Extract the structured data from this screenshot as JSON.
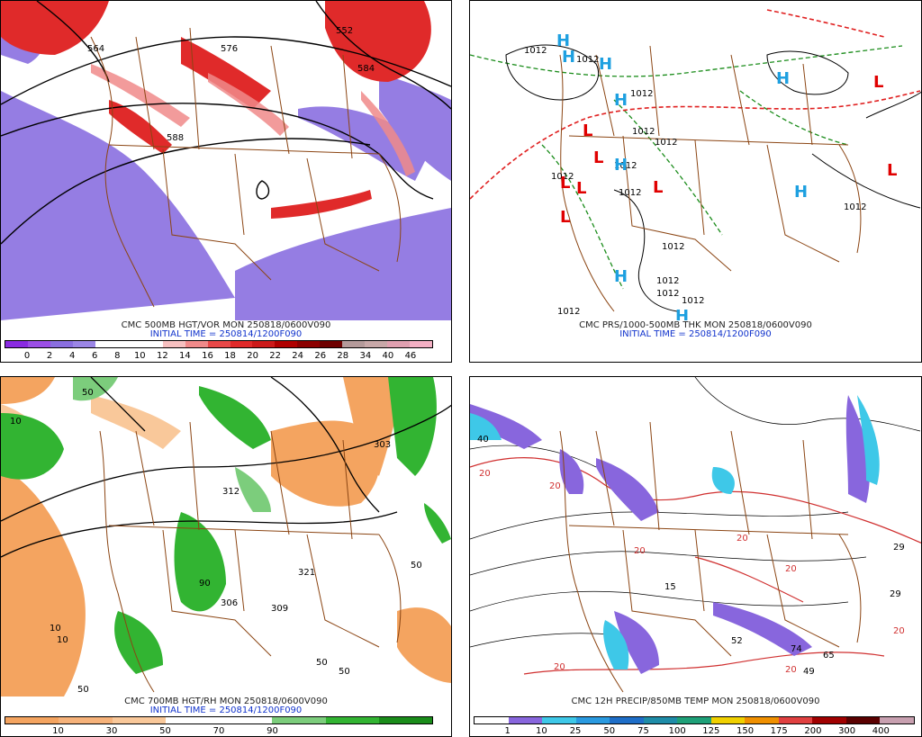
{
  "panels": [
    {
      "title": "CMC 500MB HGT/VOR MON 250818/0600V090",
      "initial": "INITIAL TIME = 250814/1200F090",
      "colorbar": {
        "colors": [
          "#8a2be2",
          "#9b4ee6",
          "#8a6fe0",
          "#9b86e6",
          "#ffffff",
          "#ffffff",
          "#ffffff",
          "#f6c0c0",
          "#f08a8a",
          "#e84848",
          "#e02a2a",
          "#cc1a1a",
          "#b00000",
          "#8c0000",
          "#6e0000",
          "#b49a9a",
          "#c8a8a8",
          "#e0a0b0",
          "#f4b0c4"
        ],
        "ticks": [
          "0",
          "2",
          "4",
          "6",
          "8",
          "10",
          "12",
          "14",
          "16",
          "18",
          "20",
          "22",
          "24",
          "26",
          "28",
          "34",
          "40",
          "46"
        ]
      },
      "contour_labels": [
        "564",
        "576",
        "552",
        "584",
        "588"
      ]
    },
    {
      "title": "CMC PRS/1000-500MB THK MON 250818/0600V090",
      "initial": "INITIAL TIME = 250814/1200F090",
      "pressure_labels": [
        "1012",
        "1012",
        "1012",
        "1012",
        "1012",
        "1012",
        "1012",
        "1012",
        "1012",
        "1012",
        "1012",
        "1012",
        "1012",
        "1012"
      ],
      "highs": [
        "H",
        "H",
        "H",
        "H",
        "H",
        "H",
        "H",
        "H",
        "H"
      ],
      "lows": [
        "L",
        "L",
        "L",
        "L",
        "L",
        "L",
        "L",
        "L"
      ]
    },
    {
      "title": "CMC 700MB HGT/RH MON 250818/0600V090",
      "initial": "INITIAL TIME = 250814/1200F090",
      "colorbar": {
        "colors": [
          "#f4a460",
          "#f6b27a",
          "#f9c89a",
          "#ffffff",
          "#ffffff",
          "#7ccd7c",
          "#32b432",
          "#1a8c1a"
        ],
        "ticks": [
          "10",
          "30",
          "50",
          "70",
          "90"
        ]
      },
      "contour_labels": [
        "50",
        "10",
        "50",
        "10",
        "50",
        "90",
        "50",
        "10",
        "50",
        "303",
        "312",
        "321",
        "306",
        "309"
      ]
    },
    {
      "title": "CMC 12H PRECIP/850MB TEMP MON 250818/0600V090",
      "colorbar": {
        "colors": [
          "#ffffff",
          "#8866dd",
          "#3ec8e8",
          "#2a9ae0",
          "#1e6ec8",
          "#1e8ca8",
          "#1ea078",
          "#f0d000",
          "#f09000",
          "#e04040",
          "#a00000",
          "#5a0000",
          "#c8a0b0"
        ],
        "ticks": [
          "1",
          "10",
          "25",
          "50",
          "75",
          "100",
          "125",
          "150",
          "175",
          "200",
          "300",
          "400"
        ]
      },
      "temp_labels": [
        "20",
        "20",
        "20",
        "20",
        "20",
        "20",
        "20",
        "20"
      ],
      "precip_labels": [
        "40",
        "29",
        "15",
        "52",
        "74",
        "49",
        "65",
        "29"
      ]
    }
  ]
}
